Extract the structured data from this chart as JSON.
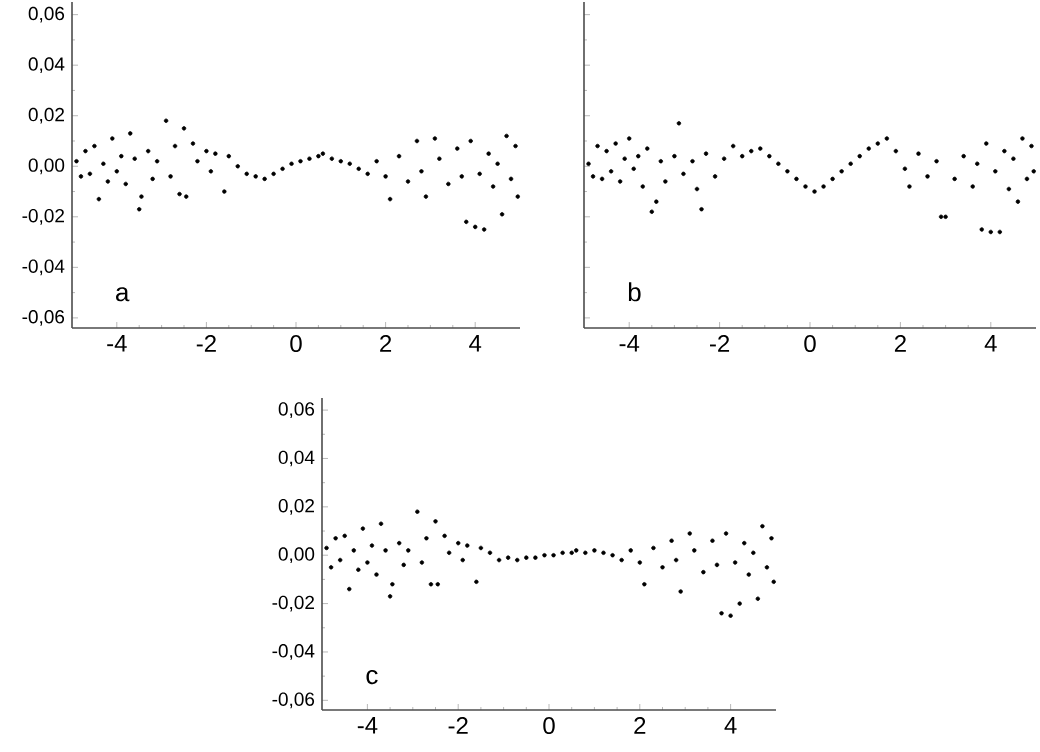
{
  "chart_data": [
    {
      "type": "scatter",
      "xlim": [
        -5,
        5
      ],
      "ylim": [
        -0.064,
        0.065
      ],
      "xticks": [
        -4,
        -2,
        0,
        2,
        4
      ],
      "yticks": [
        {
          "value": -0.06,
          "label": "-0,06"
        },
        {
          "value": -0.04,
          "label": "-0,04"
        },
        {
          "value": -0.02,
          "label": "-0,02"
        },
        {
          "value": 0,
          "label": "0,00"
        },
        {
          "value": 0.02,
          "label": "0,02"
        },
        {
          "value": 0.04,
          "label": "0,04"
        },
        {
          "value": 0.06,
          "label": "0,06"
        }
      ],
      "annotations": [
        "a"
      ],
      "series": [
        {
          "color": "#000000",
          "x": [
            -4.9,
            -4.8,
            -4.7,
            -4.6,
            -4.5,
            -4.4,
            -4.3,
            -4.2,
            -4.1,
            -4.0,
            -3.9,
            -3.8,
            -3.7,
            -3.6,
            -3.5,
            -3.45,
            -3.3,
            -3.2,
            -3.1,
            -2.9,
            -2.8,
            -2.7,
            -2.6,
            -2.5,
            -2.45,
            -2.3,
            -2.2,
            -2.0,
            -1.9,
            -1.8,
            -1.6,
            -1.5,
            -1.3,
            -1.1,
            -0.9,
            -0.7,
            -0.5,
            -0.3,
            -0.1,
            0.1,
            0.3,
            0.5,
            0.6,
            0.8,
            1.0,
            1.2,
            1.4,
            1.6,
            1.8,
            2.0,
            2.1,
            2.3,
            2.5,
            2.7,
            2.8,
            2.9,
            3.1,
            3.2,
            3.4,
            3.6,
            3.7,
            3.8,
            3.9,
            4.0,
            4.1,
            4.2,
            4.3,
            4.4,
            4.5,
            4.6,
            4.7,
            4.8,
            4.9,
            4.95
          ],
          "values": [
            0.002,
            -0.004,
            0.006,
            -0.003,
            0.008,
            -0.013,
            0.001,
            -0.006,
            0.011,
            -0.002,
            0.004,
            -0.007,
            0.013,
            0.003,
            -0.017,
            -0.012,
            0.006,
            -0.005,
            0.002,
            0.018,
            -0.004,
            0.008,
            -0.011,
            0.015,
            -0.012,
            0.009,
            0.002,
            0.006,
            -0.002,
            0.005,
            -0.01,
            0.004,
            0.0,
            -0.003,
            -0.004,
            -0.005,
            -0.003,
            -0.001,
            0.001,
            0.002,
            0.003,
            0.004,
            0.005,
            0.003,
            0.002,
            0.001,
            -0.001,
            -0.003,
            0.002,
            -0.004,
            -0.013,
            0.004,
            -0.006,
            0.01,
            -0.002,
            -0.012,
            0.011,
            0.003,
            -0.007,
            0.007,
            -0.004,
            -0.022,
            0.01,
            -0.024,
            -0.003,
            -0.025,
            0.005,
            -0.008,
            0.001,
            -0.019,
            0.012,
            -0.005,
            0.008,
            -0.012
          ]
        }
      ]
    },
    {
      "type": "scatter",
      "xlim": [
        -5,
        5
      ],
      "ylim": [
        -0.064,
        0.065
      ],
      "xticks": [
        -4,
        -2,
        0,
        2,
        4
      ],
      "yticks": [
        {
          "value": -0.06,
          "label": null
        },
        {
          "value": -0.04,
          "label": null
        },
        {
          "value": -0.02,
          "label": null
        },
        {
          "value": 0,
          "label": null
        },
        {
          "value": 0.02,
          "label": null
        },
        {
          "value": 0.04,
          "label": null
        },
        {
          "value": 0.06,
          "label": null
        }
      ],
      "tick_labels": "x",
      "annotations": [
        "b"
      ],
      "series": [
        {
          "color": "#000000",
          "x": [
            -4.9,
            -4.8,
            -4.7,
            -4.6,
            -4.5,
            -4.4,
            -4.3,
            -4.2,
            -4.1,
            -4.0,
            -3.9,
            -3.8,
            -3.7,
            -3.6,
            -3.5,
            -3.4,
            -3.3,
            -3.2,
            -3.0,
            -2.9,
            -2.8,
            -2.6,
            -2.5,
            -2.4,
            -2.3,
            -2.1,
            -1.9,
            -1.7,
            -1.5,
            -1.3,
            -1.1,
            -0.9,
            -0.7,
            -0.5,
            -0.3,
            -0.1,
            0.1,
            0.3,
            0.5,
            0.7,
            0.9,
            1.1,
            1.3,
            1.5,
            1.7,
            1.9,
            2.1,
            2.2,
            2.4,
            2.6,
            2.8,
            2.9,
            3.0,
            3.2,
            3.4,
            3.6,
            3.7,
            3.8,
            3.9,
            4.0,
            4.1,
            4.2,
            4.3,
            4.4,
            4.5,
            4.6,
            4.7,
            4.8,
            4.9,
            4.95
          ],
          "values": [
            0.001,
            -0.004,
            0.008,
            -0.005,
            0.006,
            -0.002,
            0.009,
            -0.006,
            0.003,
            0.011,
            -0.001,
            0.004,
            -0.008,
            0.007,
            -0.018,
            -0.014,
            0.002,
            -0.006,
            0.004,
            0.017,
            -0.003,
            0.002,
            -0.009,
            -0.017,
            0.005,
            -0.004,
            0.003,
            0.008,
            0.004,
            0.006,
            0.007,
            0.004,
            0.001,
            -0.002,
            -0.005,
            -0.008,
            -0.01,
            -0.008,
            -0.005,
            -0.002,
            0.001,
            0.004,
            0.007,
            0.009,
            0.011,
            0.006,
            -0.001,
            -0.008,
            0.005,
            -0.004,
            0.002,
            -0.02,
            -0.02,
            -0.005,
            0.004,
            -0.008,
            0.001,
            -0.025,
            0.009,
            -0.026,
            -0.002,
            -0.026,
            0.006,
            -0.009,
            0.003,
            -0.014,
            0.011,
            -0.005,
            0.008,
            -0.002
          ]
        }
      ]
    },
    {
      "type": "scatter",
      "xlim": [
        -5,
        5
      ],
      "ylim": [
        -0.064,
        0.065
      ],
      "xticks": [
        -4,
        -2,
        0,
        2,
        4
      ],
      "yticks": [
        {
          "value": -0.06,
          "label": "-0,06"
        },
        {
          "value": -0.04,
          "label": "-0,04"
        },
        {
          "value": -0.02,
          "label": "-0,02"
        },
        {
          "value": 0,
          "label": "0,00"
        },
        {
          "value": 0.02,
          "label": "0,02"
        },
        {
          "value": 0.04,
          "label": "0,04"
        },
        {
          "value": 0.06,
          "label": "0,06"
        }
      ],
      "annotations": [
        "c"
      ],
      "series": [
        {
          "color": "#000000",
          "x": [
            -4.9,
            -4.8,
            -4.7,
            -4.6,
            -4.5,
            -4.4,
            -4.3,
            -4.2,
            -4.1,
            -4.0,
            -3.9,
            -3.8,
            -3.7,
            -3.6,
            -3.5,
            -3.45,
            -3.3,
            -3.2,
            -3.1,
            -2.9,
            -2.8,
            -2.7,
            -2.6,
            -2.5,
            -2.45,
            -2.3,
            -2.2,
            -2.0,
            -1.9,
            -1.8,
            -1.6,
            -1.5,
            -1.3,
            -1.1,
            -0.9,
            -0.7,
            -0.5,
            -0.3,
            -0.1,
            0.1,
            0.3,
            0.5,
            0.6,
            0.8,
            1.0,
            1.2,
            1.4,
            1.6,
            1.8,
            2.0,
            2.1,
            2.3,
            2.5,
            2.7,
            2.8,
            2.9,
            3.1,
            3.2,
            3.4,
            3.6,
            3.7,
            3.8,
            3.9,
            4.0,
            4.1,
            4.2,
            4.3,
            4.4,
            4.5,
            4.6,
            4.7,
            4.8,
            4.9,
            4.95
          ],
          "values": [
            0.003,
            -0.005,
            0.007,
            -0.002,
            0.008,
            -0.014,
            0.002,
            -0.006,
            0.011,
            -0.003,
            0.004,
            -0.008,
            0.013,
            0.002,
            -0.017,
            -0.012,
            0.005,
            -0.004,
            0.002,
            0.018,
            -0.003,
            0.007,
            -0.012,
            0.014,
            -0.012,
            0.008,
            0.001,
            0.005,
            -0.002,
            0.004,
            -0.011,
            0.003,
            0.001,
            -0.002,
            -0.001,
            -0.002,
            -0.001,
            -0.001,
            0.0,
            0.0,
            0.001,
            0.001,
            0.002,
            0.001,
            0.002,
            0.001,
            0.0,
            -0.002,
            0.002,
            -0.003,
            -0.012,
            0.003,
            -0.005,
            0.006,
            -0.002,
            -0.015,
            0.009,
            0.002,
            -0.007,
            0.006,
            -0.004,
            -0.024,
            0.009,
            -0.025,
            -0.003,
            -0.02,
            0.005,
            -0.008,
            0.001,
            -0.018,
            0.012,
            -0.005,
            0.007,
            -0.011
          ]
        }
      ]
    }
  ]
}
